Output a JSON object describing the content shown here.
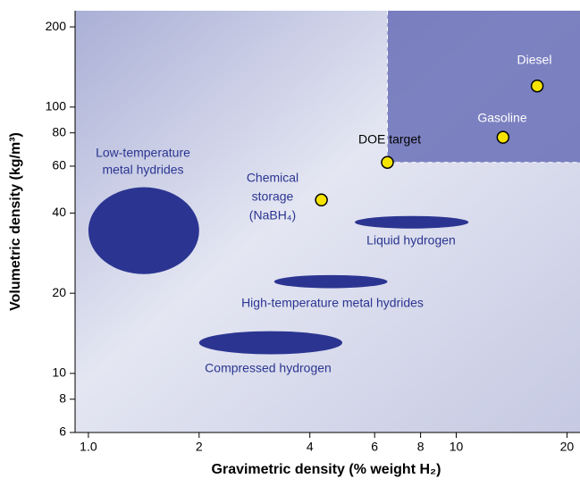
{
  "chart_data": {
    "type": "scatter",
    "x_label": "Gravimetric density (% weight H₂)",
    "y_label": "Volumetric density (kg/m³)",
    "log_x": true,
    "log_y": true,
    "xlim": [
      0.92,
      21.7
    ],
    "ylim": [
      6,
      230
    ],
    "xticks": [
      {
        "value": 1,
        "label": "1.0"
      },
      2,
      4,
      6,
      8,
      10,
      20
    ],
    "yticks": [
      6,
      8,
      10,
      20,
      40,
      60,
      80,
      100,
      200
    ],
    "points": [
      {
        "label": [
          "DOE target"
        ],
        "x": 6.5,
        "y": 62,
        "color": "#f5e400"
      },
      {
        "label": [
          "Chemical",
          "storage",
          "(NaBH₄)"
        ],
        "x": 4.3,
        "y": 44.8,
        "color": "#f5e400"
      },
      {
        "label": [
          "Gasoline"
        ],
        "x": 13.4,
        "y": 77,
        "color": "#f5e400"
      },
      {
        "label": [
          "Diesel"
        ],
        "x": 16.6,
        "y": 120,
        "color": "#f5e400"
      }
    ],
    "regions": [
      {
        "label": [
          "Low-temperature",
          "metal hydrides"
        ],
        "xrange": [
          1.0,
          2.0
        ],
        "yrange": [
          23.6,
          50
        ],
        "color": "#2b3591"
      },
      {
        "label": [
          "Liquid hydrogen"
        ],
        "xrange": [
          5.3,
          10.8
        ],
        "yrange": [
          35,
          39
        ],
        "color": "#2b3591"
      },
      {
        "label": [
          "High-temperature metal hydrides"
        ],
        "xrange": [
          3.2,
          6.5
        ],
        "yrange": [
          20.9,
          23.4
        ],
        "color": "#2b3591"
      },
      {
        "label": [
          "Compressed hydrogen"
        ],
        "xrange": [
          2.0,
          4.9
        ],
        "yrange": [
          11.8,
          14.4
        ],
        "color": "#2b3591"
      }
    ]
  }
}
